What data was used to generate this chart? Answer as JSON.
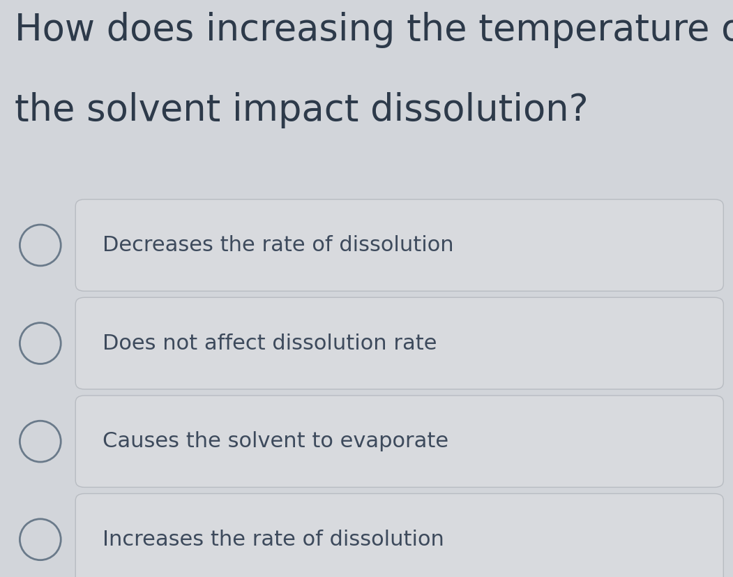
{
  "question_line1": "How does increasing the temperature of",
  "question_line2": "the solvent impact dissolution?",
  "options": [
    "Decreases the rate of dissolution",
    "Does not affect dissolution rate",
    "Causes the solvent to evaporate",
    "Increases the rate of dissolution"
  ],
  "bg_color": "#d2d5da",
  "box_color": "#d8dade",
  "box_border_color": "#b8bcc2",
  "question_color": "#2d3a4a",
  "option_text_color": "#3d4a5c",
  "circle_edge_color": "#6a7a8a",
  "title_fontsize": 38,
  "option_fontsize": 22,
  "fig_width": 10.51,
  "fig_height": 8.27
}
